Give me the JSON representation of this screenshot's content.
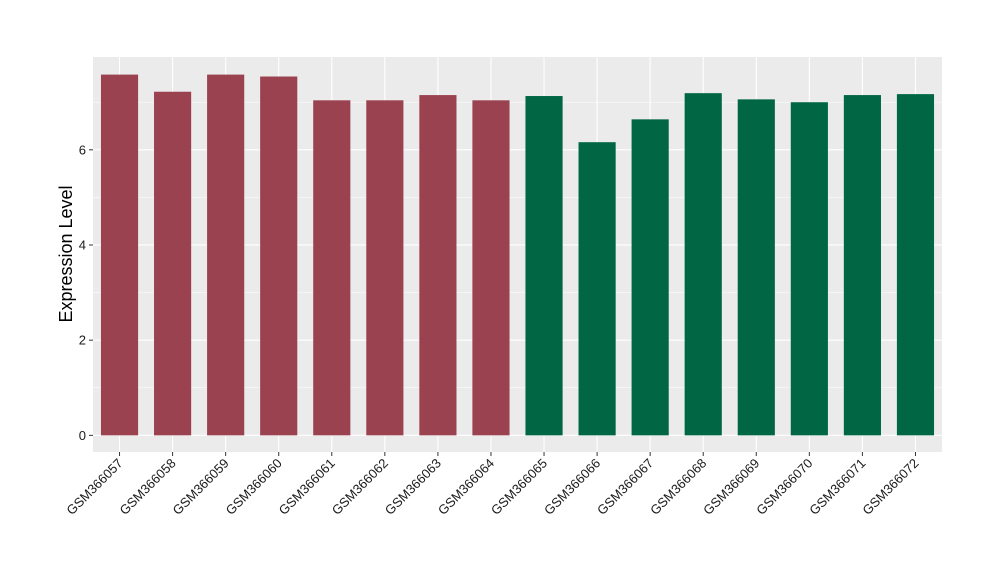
{
  "chart_data": {
    "type": "bar",
    "title": "",
    "xlabel": "",
    "ylabel": "Expression Level",
    "ylim": [
      -0.35,
      7.95
    ],
    "yticks": [
      0,
      2,
      4,
      6
    ],
    "grid": true,
    "legend": "none",
    "categories": [
      "GSM366057",
      "GSM366058",
      "GSM366059",
      "GSM366060",
      "GSM366061",
      "GSM366062",
      "GSM366063",
      "GSM366064",
      "GSM366065",
      "GSM366066",
      "GSM366067",
      "GSM366068",
      "GSM366069",
      "GSM366070",
      "GSM366071",
      "GSM366072"
    ],
    "values": [
      7.58,
      7.22,
      7.58,
      7.54,
      7.04,
      7.04,
      7.15,
      7.04,
      7.13,
      6.16,
      6.64,
      7.19,
      7.06,
      7.0,
      7.15,
      7.17
    ],
    "groups": [
      0,
      0,
      0,
      0,
      0,
      0,
      0,
      0,
      1,
      1,
      1,
      1,
      1,
      1,
      1,
      1
    ],
    "colors": [
      "#9b4250",
      "#006644"
    ],
    "panel_color": "#ebebeb",
    "grid_color": "#ffffff"
  }
}
